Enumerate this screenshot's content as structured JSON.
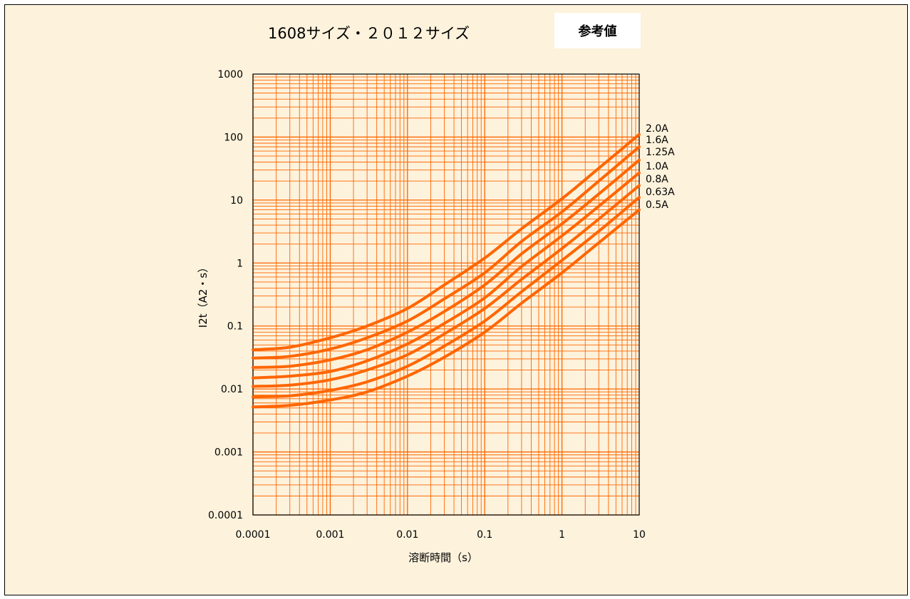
{
  "title": "1608サイズ・２０１２サイズ",
  "badge": "参考値",
  "chart_data": {
    "type": "line",
    "title": "1608サイズ・２０１２サイズ",
    "xlabel": "溶断時間（s）",
    "ylabel": "I2t（A2・s）",
    "xscale": "log",
    "yscale": "log",
    "xlim": [
      0.0001,
      10
    ],
    "ylim": [
      0.0001,
      1000
    ],
    "x_ticks": [
      "0.0001",
      "0.001",
      "0.01",
      "0.1",
      "1",
      "10"
    ],
    "y_ticks": [
      "0.0001",
      "0.001",
      "0.01",
      "0.1",
      "1",
      "10",
      "100",
      "1000"
    ],
    "grid": true,
    "legend": "labels at right end of each curve",
    "series_color": "#ff6600",
    "grid_color": "#ff6600",
    "x": [
      0.0001,
      0.0003,
      0.001,
      0.003,
      0.01,
      0.03,
      0.1,
      0.3,
      1,
      3,
      10
    ],
    "series": [
      {
        "name": "2.0A",
        "values": [
          0.042,
          0.046,
          0.065,
          0.1,
          0.19,
          0.45,
          1.2,
          3.5,
          10.5,
          32,
          110
        ]
      },
      {
        "name": "1.6A",
        "values": [
          0.031,
          0.033,
          0.043,
          0.065,
          0.12,
          0.27,
          0.7,
          2.2,
          6.5,
          20,
          70
        ]
      },
      {
        "name": "1.25A",
        "values": [
          0.022,
          0.023,
          0.029,
          0.042,
          0.08,
          0.17,
          0.45,
          1.4,
          4.2,
          12.5,
          43
        ]
      },
      {
        "name": "1.0A",
        "values": [
          0.015,
          0.016,
          0.019,
          0.028,
          0.052,
          0.11,
          0.28,
          0.88,
          2.7,
          8,
          27
        ]
      },
      {
        "name": "0.8A",
        "values": [
          0.011,
          0.0115,
          0.014,
          0.02,
          0.035,
          0.075,
          0.19,
          0.55,
          1.7,
          5,
          17
        ]
      },
      {
        "name": "0.63A",
        "values": [
          0.0075,
          0.0078,
          0.0095,
          0.013,
          0.023,
          0.048,
          0.12,
          0.35,
          1.1,
          3.2,
          11
        ]
      },
      {
        "name": "0.5A",
        "values": [
          0.0052,
          0.0055,
          0.0067,
          0.009,
          0.016,
          0.032,
          0.08,
          0.23,
          0.7,
          2.1,
          7
        ]
      }
    ]
  }
}
